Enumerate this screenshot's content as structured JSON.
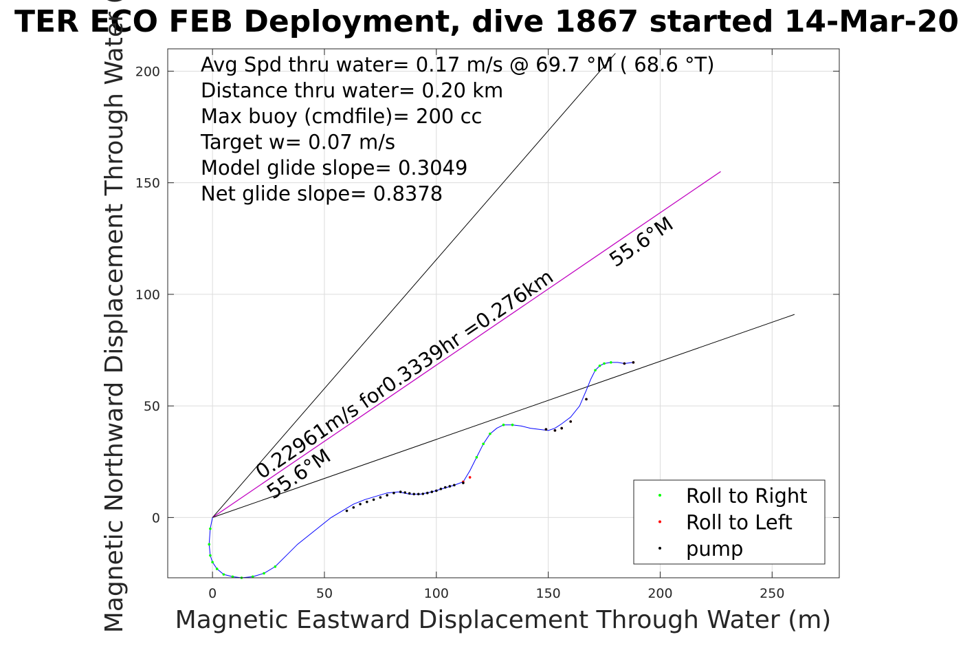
{
  "chart_data": {
    "type": "line",
    "title": "TER ECO FEB Deployment, dive 1867 started 14-Mar-20",
    "xlabel": "Magnetic Eastward Displacement Through Water (m)",
    "ylabel": "Magnetic Northward Displacement Through Water (",
    "xlim": [
      -20,
      280
    ],
    "ylim": [
      -27,
      210
    ],
    "xticks": [
      0,
      50,
      100,
      150,
      200,
      250
    ],
    "yticks": [
      0,
      50,
      100,
      150,
      200
    ],
    "grid": true,
    "legend_position": "bottom-right",
    "annotations": [
      "Avg Spd thru water=  0.17 m/s @  69.7 °M ( 68.6 °T)",
      "Distance thru water=  0.20 km",
      "Max buoy (cmdfile)= 200 cc",
      "Target w= 0.07 m/s",
      "Model glide slope= 0.3049",
      "Net glide slope= 0.8378"
    ],
    "line_labels": {
      "speed": "0.22961m/s for0.3339hr =0.276km",
      "heading_near": "55.6°M",
      "heading_far": "55.6°M"
    },
    "reference_lines": [
      {
        "name": "upper-bound",
        "x": [
          0,
          180
        ],
        "y": [
          0,
          208
        ],
        "color": "#000000"
      },
      {
        "name": "heading",
        "x": [
          0,
          227
        ],
        "y": [
          0,
          155
        ],
        "color": "#000000"
      },
      {
        "name": "heading-track",
        "x": [
          0,
          227
        ],
        "y": [
          0,
          155
        ],
        "color": "#cc00cc"
      },
      {
        "name": "lower-bound",
        "x": [
          0,
          260
        ],
        "y": [
          0,
          91
        ],
        "color": "#000000"
      }
    ],
    "track": {
      "name": "trajectory",
      "color": "#0000ff",
      "x": [
        0,
        -1,
        -1.5,
        -1,
        0,
        2,
        5,
        9,
        13,
        18,
        23,
        28,
        33,
        38,
        43,
        48,
        53,
        58,
        63,
        68,
        73,
        78,
        83,
        88,
        93,
        98,
        103,
        108,
        112,
        115,
        118,
        121,
        124,
        127,
        130,
        134,
        138,
        142,
        146,
        150,
        153,
        156,
        160,
        164,
        167,
        169,
        171,
        173,
        175,
        178,
        181,
        184,
        188
      ],
      "y": [
        0,
        -5,
        -12,
        -17,
        -20,
        -23,
        -25.5,
        -26.5,
        -27,
        -26.5,
        -25,
        -22,
        -17,
        -12,
        -8,
        -4,
        0,
        3,
        6,
        8,
        9.5,
        11,
        11.5,
        10.5,
        10.5,
        11.5,
        13,
        14.5,
        16,
        21,
        27,
        33,
        37.5,
        40,
        41.5,
        41.5,
        41,
        40,
        39.5,
        39,
        40,
        42,
        45,
        50,
        57,
        62,
        66,
        68,
        69,
        69.5,
        69.5,
        69,
        69.5
      ]
    },
    "series": [
      {
        "name": "Roll to Right",
        "color": "#00ff00",
        "x": [
          -1,
          -1.5,
          -1,
          0,
          2,
          5,
          9,
          13,
          18,
          23,
          28,
          118,
          121,
          124,
          130,
          134,
          171,
          173,
          175,
          178
        ],
        "y": [
          -5,
          -12,
          -17,
          -20,
          -23,
          -25.5,
          -26.5,
          -27,
          -26.5,
          -25,
          -22,
          27,
          33,
          37.5,
          41.5,
          41.5,
          66,
          68,
          69,
          69.5
        ]
      },
      {
        "name": "Roll to Left",
        "color": "#ff0000",
        "x": [
          112,
          115,
          149,
          153,
          156,
          160,
          167,
          184,
          188
        ],
        "y": [
          16,
          18,
          39.5,
          39,
          40,
          43,
          53,
          69,
          69.5
        ]
      },
      {
        "name": "pump",
        "color": "#000000",
        "x": [
          60,
          63,
          66,
          69,
          72,
          75,
          78,
          81,
          84,
          86,
          88,
          90,
          92,
          94,
          96,
          98,
          100,
          102,
          104,
          106,
          108,
          112,
          149,
          153,
          156,
          160,
          167,
          184,
          188
        ],
        "y": [
          3,
          4.5,
          6,
          7,
          8,
          9,
          10,
          11,
          11.5,
          11.2,
          10.8,
          10.5,
          10.5,
          10.6,
          11,
          11.5,
          12,
          12.8,
          13.5,
          14,
          14.5,
          15.5,
          39.5,
          39,
          40,
          43,
          53,
          69,
          69.5
        ]
      }
    ]
  }
}
